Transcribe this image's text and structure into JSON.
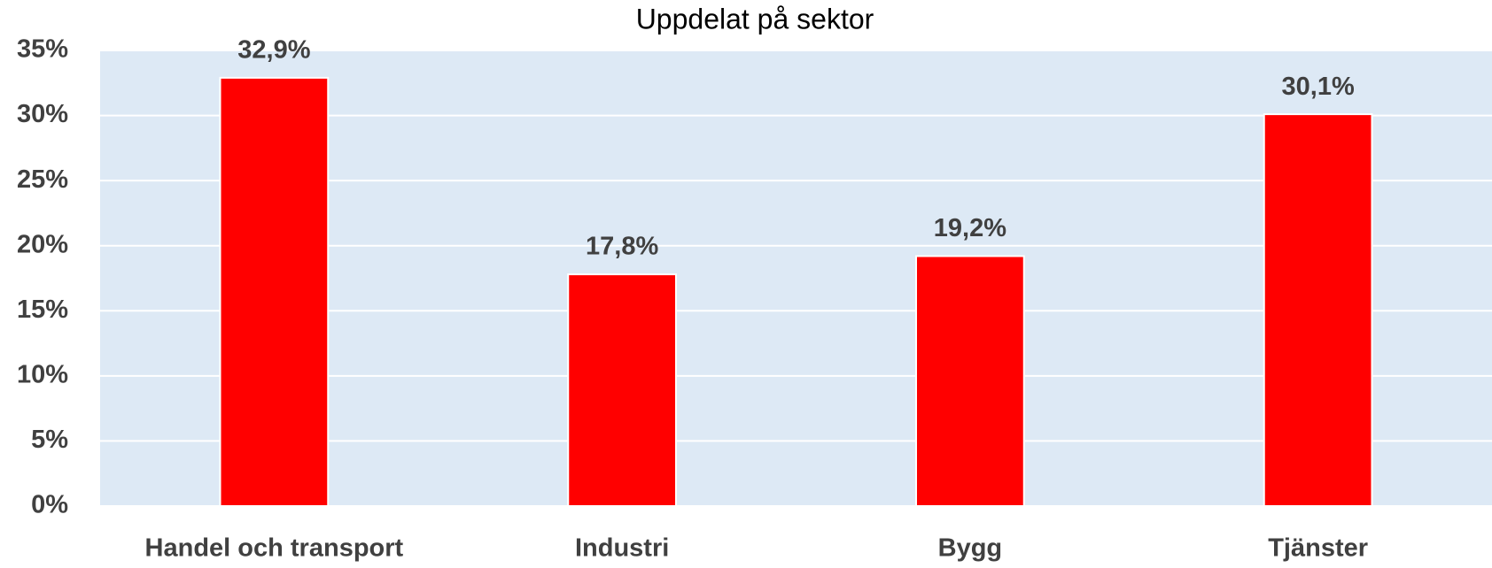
{
  "chart_data": {
    "type": "bar",
    "title": "Uppdelat på sektor",
    "categories": [
      "Handel och transport",
      "Industri",
      "Bygg",
      "Tjänster"
    ],
    "values": [
      32.9,
      17.8,
      19.2,
      30.1
    ],
    "value_labels": [
      "32,9%",
      "17,8%",
      "19,2%",
      "30,1%"
    ],
    "color": "#ff0000",
    "ylim": [
      0,
      35
    ],
    "yticks": [
      {
        "value": 0,
        "label": "0%"
      },
      {
        "value": 5,
        "label": "5%"
      },
      {
        "value": 10,
        "label": "10%"
      },
      {
        "value": 15,
        "label": "15%"
      },
      {
        "value": 20,
        "label": "20%"
      },
      {
        "value": 25,
        "label": "25%"
      },
      {
        "value": 30,
        "label": "30%"
      },
      {
        "value": 35,
        "label": "35%"
      }
    ],
    "grid": true
  }
}
